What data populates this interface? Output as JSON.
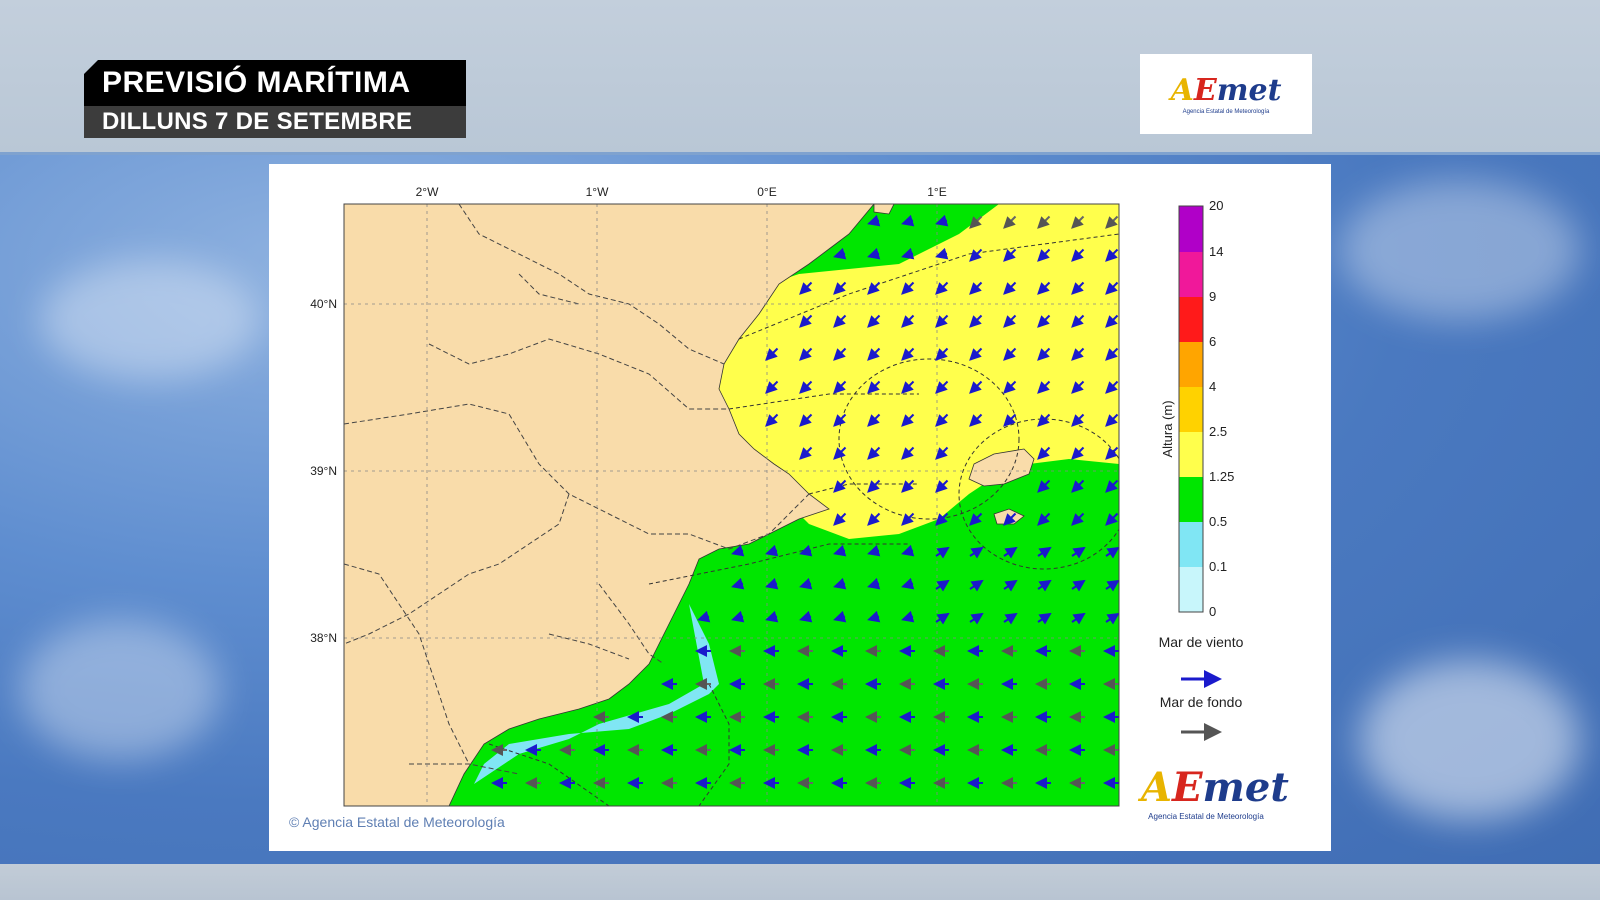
{
  "header": {
    "title": "PREVISIÓ MARÍTIMA",
    "subtitle": "DILLUNS 7 DE SETEMBRE"
  },
  "logo": {
    "name": "AEMet",
    "tagline": "Agencia Estatal de Meteorología"
  },
  "map": {
    "lon_labels": [
      "2°W",
      "1°W",
      "0°E",
      "1°E"
    ],
    "lat_labels": [
      "40°N",
      "39°N",
      "38°N"
    ],
    "land_color": "#f9dcaa",
    "sea_color_0_5_1_25": "#00e600",
    "sea_color_1_25_2_5": "#ffff4c",
    "sea_color_0_1_0_5": "#80e6f4"
  },
  "legend": {
    "axis_label": "Altura (m)",
    "ticks": [
      "20",
      "14",
      "9",
      "6",
      "4",
      "2.5",
      "1.25",
      "0.5",
      "0.1",
      "0"
    ],
    "colors": [
      "#b000c8",
      "#f0189a",
      "#ff1a1a",
      "#ffa500",
      "#ffd200",
      "#ffff4c",
      "#00e600",
      "#80e6f4",
      "#c8f6fb"
    ],
    "wind_sea_label": "Mar de viento",
    "wind_sea_color": "#1a1acc",
    "swell_label": "Mar de fondo",
    "swell_color": "#555555"
  },
  "footer": {
    "copyright": "© Agencia Estatal de Meteorología"
  }
}
